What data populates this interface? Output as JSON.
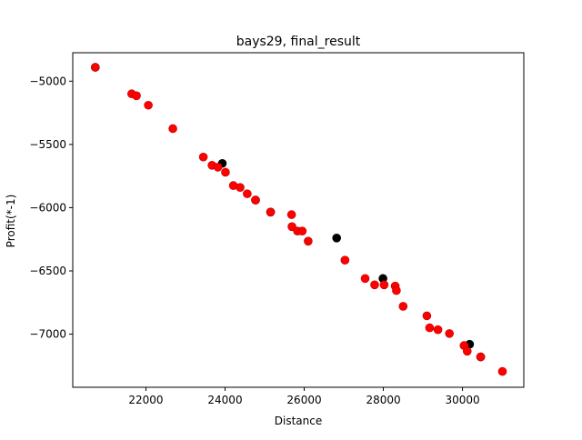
{
  "chart_data": {
    "type": "scatter",
    "title": "bays29, final_result",
    "xlabel": "Distance",
    "ylabel": "Profit(*-1)",
    "xlim": [
      20150,
      31550
    ],
    "ylim": [
      -7420,
      -4775
    ],
    "xticks": [
      22000,
      24000,
      26000,
      28000,
      30000
    ],
    "yticks": [
      -5000,
      -5500,
      -6000,
      -6500,
      -7000
    ],
    "grid": false,
    "legend": "none",
    "colors": {
      "black": "#000000",
      "red": "#ff0000",
      "red_edge": "#c00000"
    },
    "series": [
      {
        "color": "black",
        "points": [
          [
            20720,
            -4890
          ],
          [
            23930,
            -5650
          ],
          [
            26820,
            -6240
          ],
          [
            27990,
            -6560
          ],
          [
            30180,
            -7080
          ],
          [
            30460,
            -7180
          ],
          [
            25150,
            -6035
          ],
          [
            24770,
            -5940
          ]
        ]
      },
      {
        "color": "red",
        "points": [
          [
            20720,
            -4890
          ],
          [
            21640,
            -5100
          ],
          [
            21760,
            -5115
          ],
          [
            22060,
            -5190
          ],
          [
            22680,
            -5375
          ],
          [
            23450,
            -5600
          ],
          [
            23670,
            -5665
          ],
          [
            23820,
            -5680
          ],
          [
            24010,
            -5720
          ],
          [
            24210,
            -5825
          ],
          [
            24380,
            -5840
          ],
          [
            24560,
            -5890
          ],
          [
            24770,
            -5940
          ],
          [
            25150,
            -6035
          ],
          [
            25680,
            -6055
          ],
          [
            25690,
            -6150
          ],
          [
            25830,
            -6185
          ],
          [
            25950,
            -6185
          ],
          [
            26100,
            -6265
          ],
          [
            27030,
            -6415
          ],
          [
            27540,
            -6560
          ],
          [
            27780,
            -6610
          ],
          [
            28020,
            -6610
          ],
          [
            28300,
            -6620
          ],
          [
            28330,
            -6655
          ],
          [
            28500,
            -6780
          ],
          [
            29100,
            -6855
          ],
          [
            29170,
            -6950
          ],
          [
            29380,
            -6965
          ],
          [
            29670,
            -6995
          ],
          [
            30040,
            -7090
          ],
          [
            30120,
            -7135
          ],
          [
            30460,
            -7180
          ],
          [
            31010,
            -7295
          ]
        ]
      }
    ]
  }
}
